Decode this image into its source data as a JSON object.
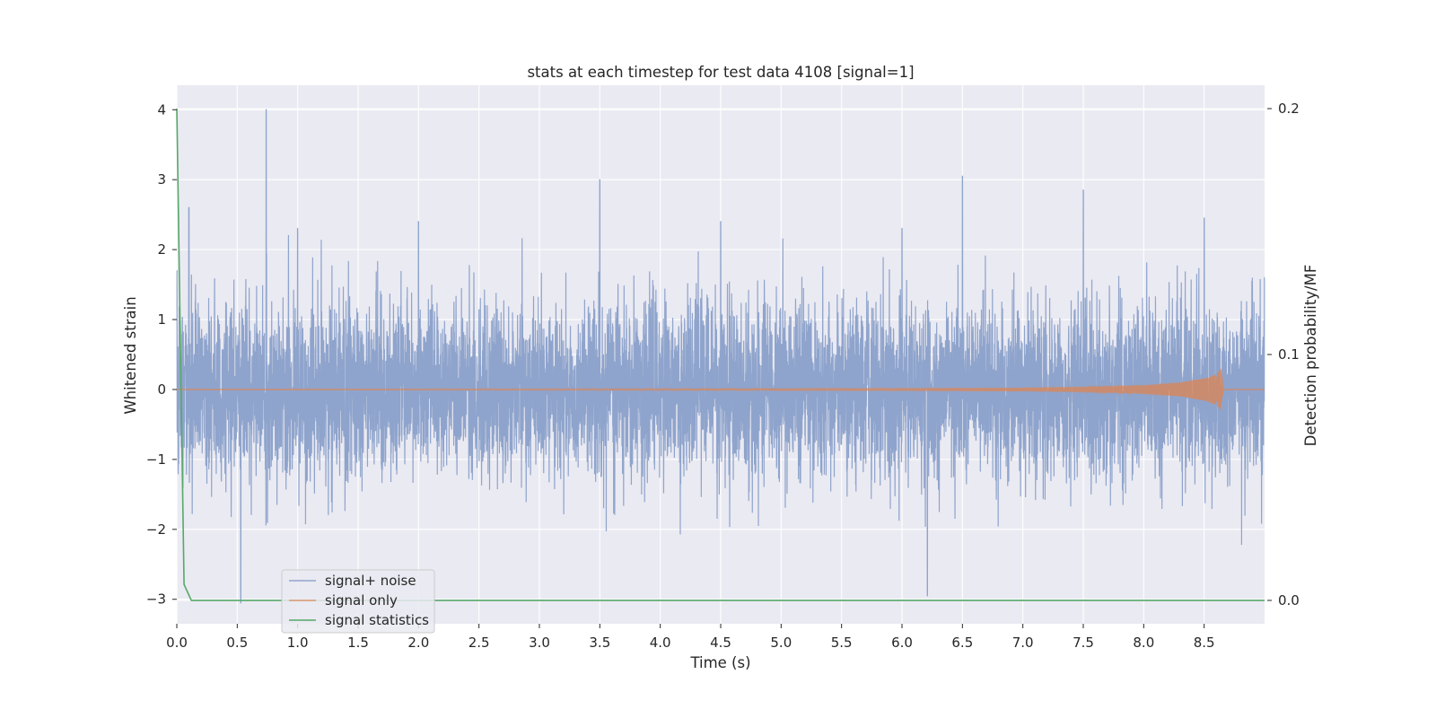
{
  "chart_data": {
    "type": "line",
    "title": "stats at each timestep for test data 4108 [signal=1]",
    "xlabel": "Time (s)",
    "ylabel": "Whitened strain",
    "y2label": "Detection probability/MF",
    "xlim": [
      0.0,
      9.0
    ],
    "ylim": [
      -3.35,
      4.35
    ],
    "y2lim": [
      -0.0095,
      0.2095
    ],
    "x_ticks": [
      "0.0",
      "0.5",
      "1.0",
      "1.5",
      "2.0",
      "2.5",
      "3.0",
      "3.5",
      "4.0",
      "4.5",
      "5.0",
      "5.5",
      "6.0",
      "6.5",
      "7.0",
      "7.5",
      "8.0",
      "8.5"
    ],
    "y_ticks": [
      "−3",
      "−2",
      "−1",
      "0",
      "1",
      "2",
      "3",
      "4"
    ],
    "y2_ticks": [
      "0.0",
      "0.1",
      "0.2"
    ],
    "grid": true,
    "legend_position": "lower-left",
    "colors": {
      "signal_noise": "#8fa4cc",
      "signal_only": "#dd8452",
      "signal_statistics": "#55a868",
      "axes_background": "#eaeaf2",
      "grid": "#ffffff"
    },
    "series": [
      {
        "name": "signal+ noise",
        "axis": "left",
        "description_points": {
          "x": [
            0.0,
            0.05,
            0.1,
            0.74,
            0.75,
            1.0,
            2.0,
            3.5,
            4.5,
            6.0,
            6.5,
            7.5,
            8.5,
            9.0
          ],
          "y": [
            1.7,
            -1.4,
            2.6,
            4.0,
            -1.9,
            2.3,
            2.4,
            3.0,
            2.4,
            2.3,
            3.05,
            2.85,
            2.45,
            1.6
          ]
        },
        "extremes": {
          "max": 4.02,
          "max_x": 0.75,
          "min": -3.05,
          "min_x": 0.53,
          "min2": -2.95,
          "min2_x": 6.21
        }
      },
      {
        "name": "signal only",
        "axis": "left",
        "x": [
          0.0,
          1.0,
          2.0,
          3.0,
          4.0,
          5.0,
          6.0,
          7.0,
          7.5,
          8.0,
          8.3,
          8.5,
          8.6,
          8.64,
          8.66,
          9.0
        ],
        "amplitude": [
          0.005,
          0.006,
          0.007,
          0.008,
          0.01,
          0.012,
          0.015,
          0.02,
          0.03,
          0.06,
          0.1,
          0.16,
          0.22,
          0.3,
          0.0,
          0.0
        ]
      },
      {
        "name": "signal statistics",
        "axis": "right",
        "x": [
          0.0,
          0.06,
          0.12,
          0.5,
          1.0,
          2.0,
          3.0,
          4.0,
          5.0,
          6.0,
          7.0,
          8.0,
          9.0
        ],
        "y": [
          0.2,
          0.0065,
          0.0,
          0.0,
          0.0,
          0.0,
          0.0,
          0.0,
          0.0,
          0.0,
          0.0,
          0.0,
          0.0
        ]
      }
    ]
  }
}
